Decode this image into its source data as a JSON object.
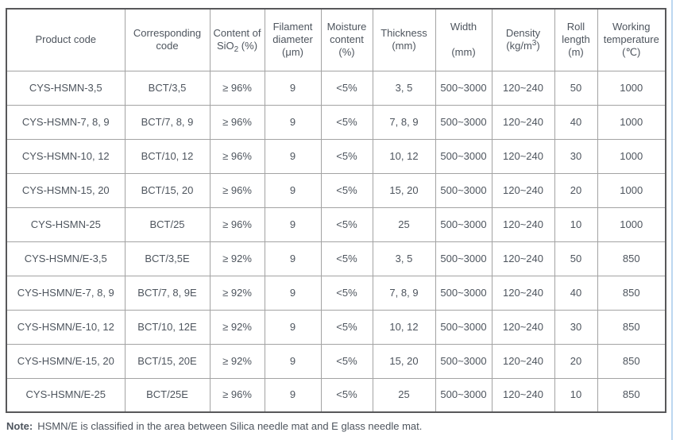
{
  "table": {
    "columns": [
      {
        "label": "Product code"
      },
      {
        "label": "Corresponding\ncode"
      },
      {
        "label": "Content of\nSiO~2~ (%)"
      },
      {
        "label": "Filament\ndiameter\n(μm)"
      },
      {
        "label": "Moisture\ncontent\n(%)"
      },
      {
        "label": "Thickness\n(mm)"
      },
      {
        "label": "Width\n\n(mm)"
      },
      {
        "label": "Density\n(kg/m^3^)"
      },
      {
        "label": "Roll\nlength\n(m)"
      },
      {
        "label": "Working\ntemperature\n(℃)"
      }
    ],
    "rows": [
      [
        "CYS-HSMN-3,5",
        "BCT/3,5",
        "≥ 96%",
        "9",
        "<5%",
        "3, 5",
        "500~3000",
        "120~240",
        "50",
        "1000"
      ],
      [
        "CYS-HSMN-7, 8, 9",
        "BCT/7, 8, 9",
        "≥ 96%",
        "9",
        "<5%",
        "7, 8, 9",
        "500~3000",
        "120~240",
        "40",
        "1000"
      ],
      [
        "CYS-HSMN-10, 12",
        "BCT/10, 12",
        "≥ 96%",
        "9",
        "<5%",
        "10, 12",
        "500~3000",
        "120~240",
        "30",
        "1000"
      ],
      [
        "CYS-HSMN-15, 20",
        "BCT/15, 20",
        "≥ 96%",
        "9",
        "<5%",
        "15, 20",
        "500~3000",
        "120~240",
        "20",
        "1000"
      ],
      [
        "CYS-HSMN-25",
        "BCT/25",
        "≥ 96%",
        "9",
        "<5%",
        "25",
        "500~3000",
        "120~240",
        "10",
        "1000"
      ],
      [
        "CYS-HSMN/E-3,5",
        "BCT/3,5E",
        "≥ 92%",
        "9",
        "<5%",
        "3, 5",
        "500~3000",
        "120~240",
        "50",
        "850"
      ],
      [
        "CYS-HSMN/E-7, 8, 9",
        "BCT/7, 8, 9E",
        "≥ 92%",
        "9",
        "<5%",
        "7, 8, 9",
        "500~3000",
        "120~240",
        "40",
        "850"
      ],
      [
        "CYS-HSMN/E-10, 12",
        "BCT/10, 12E",
        "≥ 92%",
        "9",
        "<5%",
        "10, 12",
        "500~3000",
        "120~240",
        "30",
        "850"
      ],
      [
        "CYS-HSMN/E-15, 20",
        "BCT/15, 20E",
        "≥ 92%",
        "9",
        "<5%",
        "15, 20",
        "500~3000",
        "120~240",
        "20",
        "850"
      ],
      [
        "CYS-HSMN/E-25",
        "BCT/25E",
        "≥ 96%",
        "9",
        "<5%",
        "25",
        "500~3000",
        "120~240",
        "10",
        "850"
      ]
    ]
  },
  "note": {
    "label": "Note:",
    "text": "HSMN/E is classified in the area between Silica needle mat and E glass needle mat."
  },
  "colors": {
    "text": "#4e555e",
    "border_inner": "#a3a3a3",
    "border_outer": "#58585a",
    "accent_line": "#bcd7f0"
  }
}
